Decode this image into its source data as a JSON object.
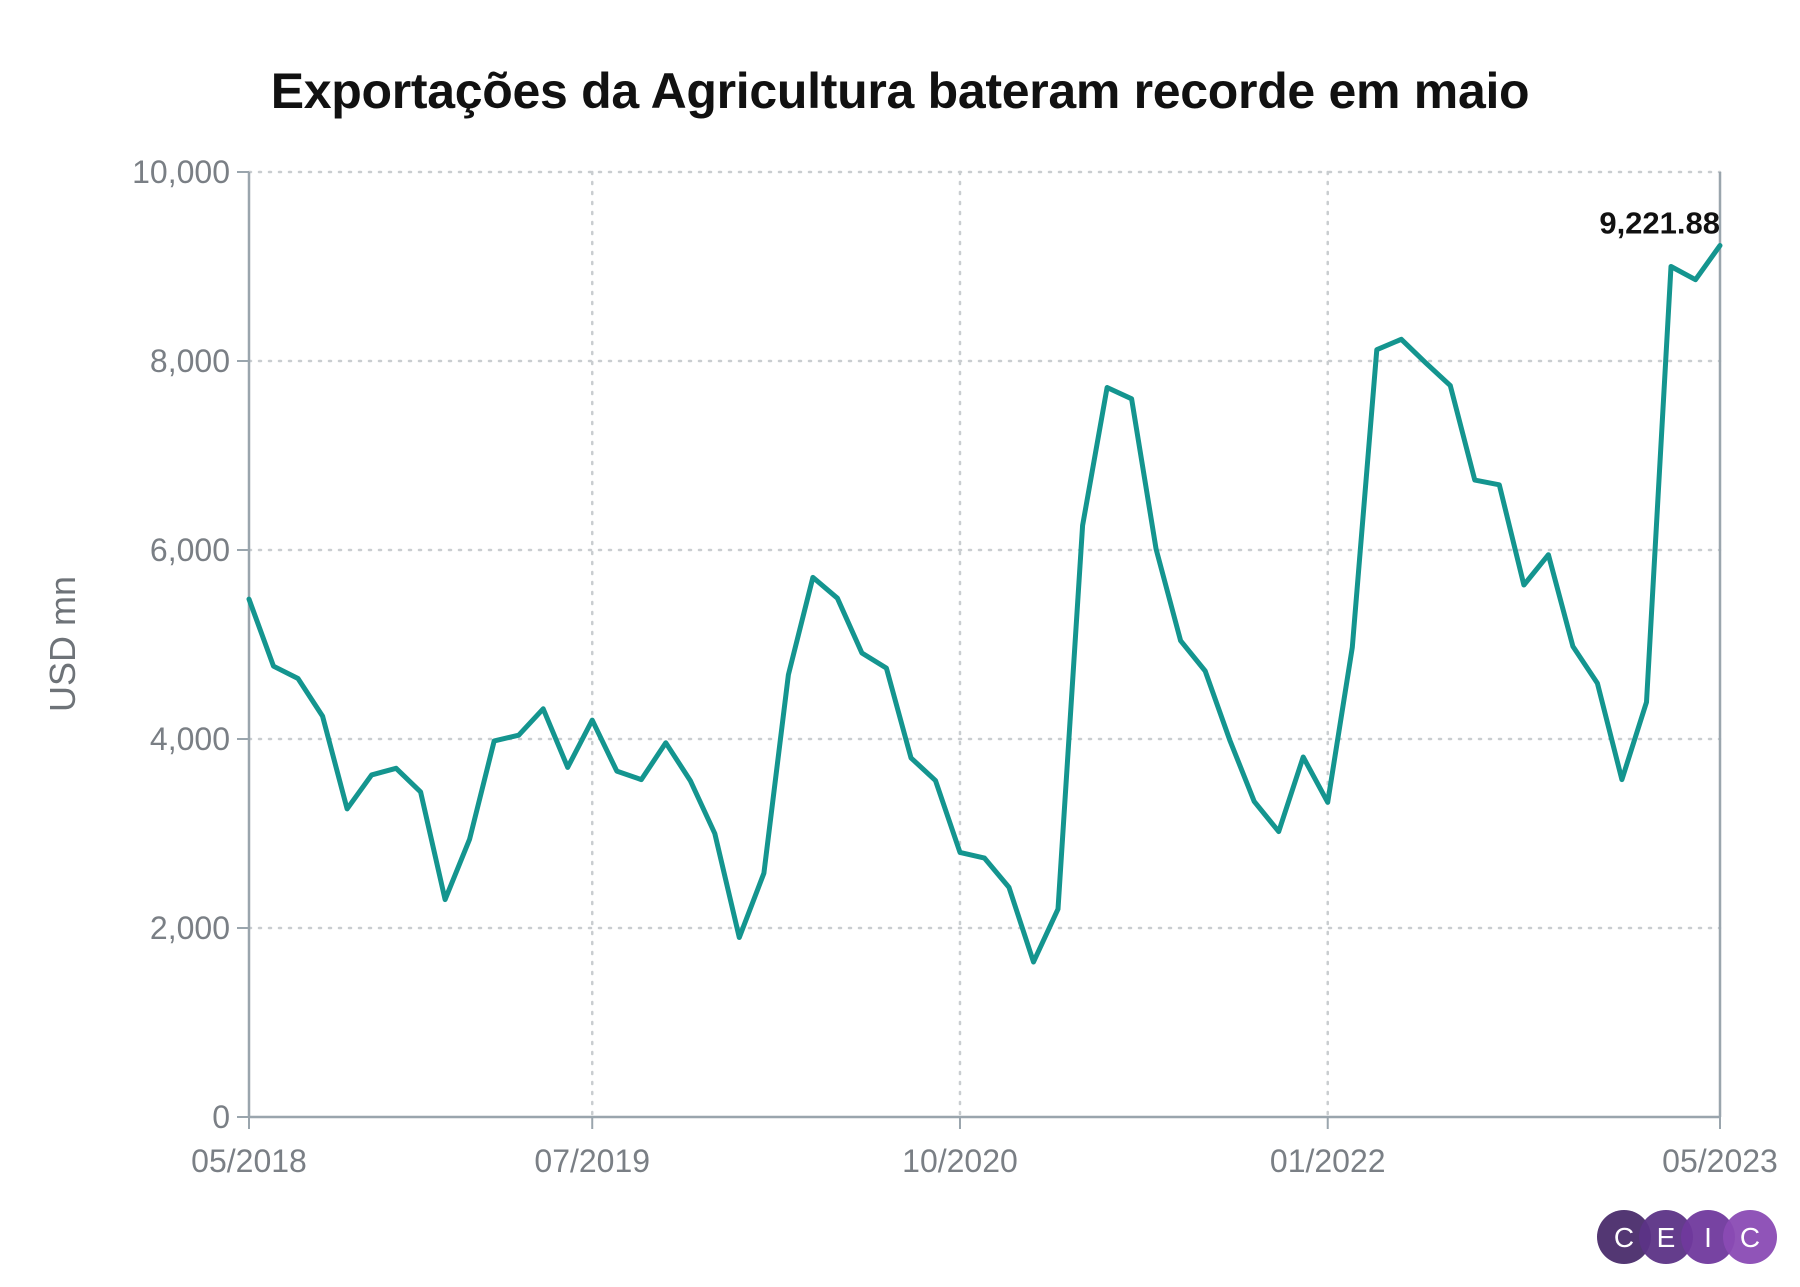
{
  "chart_data": {
    "type": "line",
    "title": "Exportações da Agricultura bateram recorde em maio",
    "ylabel": "USD mn",
    "xlabel": "",
    "ylim": [
      0,
      10000
    ],
    "yticks": [
      0,
      2000,
      4000,
      6000,
      8000,
      10000
    ],
    "ytick_labels": [
      "0",
      "2,000",
      "4,000",
      "6,000",
      "8,000",
      "10,000"
    ],
    "xtick_labels": [
      "05/2018",
      "07/2019",
      "10/2020",
      "01/2022",
      "05/2023"
    ],
    "xtick_months": [
      0,
      14,
      29,
      44,
      60
    ],
    "grid": true,
    "line_color": "#14958f",
    "series": [
      {
        "x": [
          "05/2018",
          "06/2018",
          "07/2018",
          "08/2018",
          "09/2018",
          "10/2018",
          "11/2018",
          "12/2018",
          "01/2019",
          "02/2019",
          "03/2019",
          "04/2019",
          "05/2019",
          "06/2019",
          "07/2019",
          "08/2019",
          "09/2019",
          "10/2019",
          "11/2019",
          "12/2019",
          "01/2020",
          "02/2020",
          "03/2020",
          "04/2020",
          "05/2020",
          "06/2020",
          "07/2020",
          "08/2020",
          "09/2020",
          "10/2020",
          "11/2020",
          "12/2020",
          "01/2021",
          "02/2021",
          "03/2021",
          "04/2021",
          "05/2021",
          "06/2021",
          "07/2021",
          "08/2021",
          "09/2021",
          "10/2021",
          "11/2021",
          "12/2021",
          "01/2022",
          "02/2022",
          "03/2022",
          "04/2022",
          "05/2022",
          "06/2022",
          "07/2022",
          "08/2022",
          "09/2022",
          "10/2022",
          "11/2022",
          "12/2022",
          "01/2023",
          "02/2023",
          "03/2023",
          "04/2023",
          "05/2023"
        ],
        "values": [
          5480,
          4770,
          4640,
          4240,
          3260,
          3620,
          3690,
          3440,
          2300,
          2940,
          3980,
          4040,
          4320,
          3700,
          4200,
          3660,
          3570,
          3960,
          3560,
          3000,
          1900,
          2580,
          4680,
          5710,
          5490,
          4910,
          4750,
          3800,
          3560,
          2800,
          2740,
          2430,
          1640,
          2200,
          6260,
          7720,
          7600,
          6010,
          5040,
          4720,
          3990,
          3340,
          3020,
          3810,
          3330,
          4970,
          8120,
          8230,
          7980,
          7740,
          6740,
          6690,
          5630,
          5950,
          4980,
          4590,
          3570,
          4390,
          9000,
          8860,
          9221.88
        ]
      }
    ],
    "annotations": [
      {
        "text": "9,221.88",
        "x": "05/2023",
        "y": 9221.88
      }
    ]
  },
  "logo": {
    "letters": [
      "C",
      "E",
      "I",
      "C"
    ],
    "colors": [
      "#4a2c6b",
      "#5c3386",
      "#70399d",
      "#8a4bb4"
    ]
  }
}
